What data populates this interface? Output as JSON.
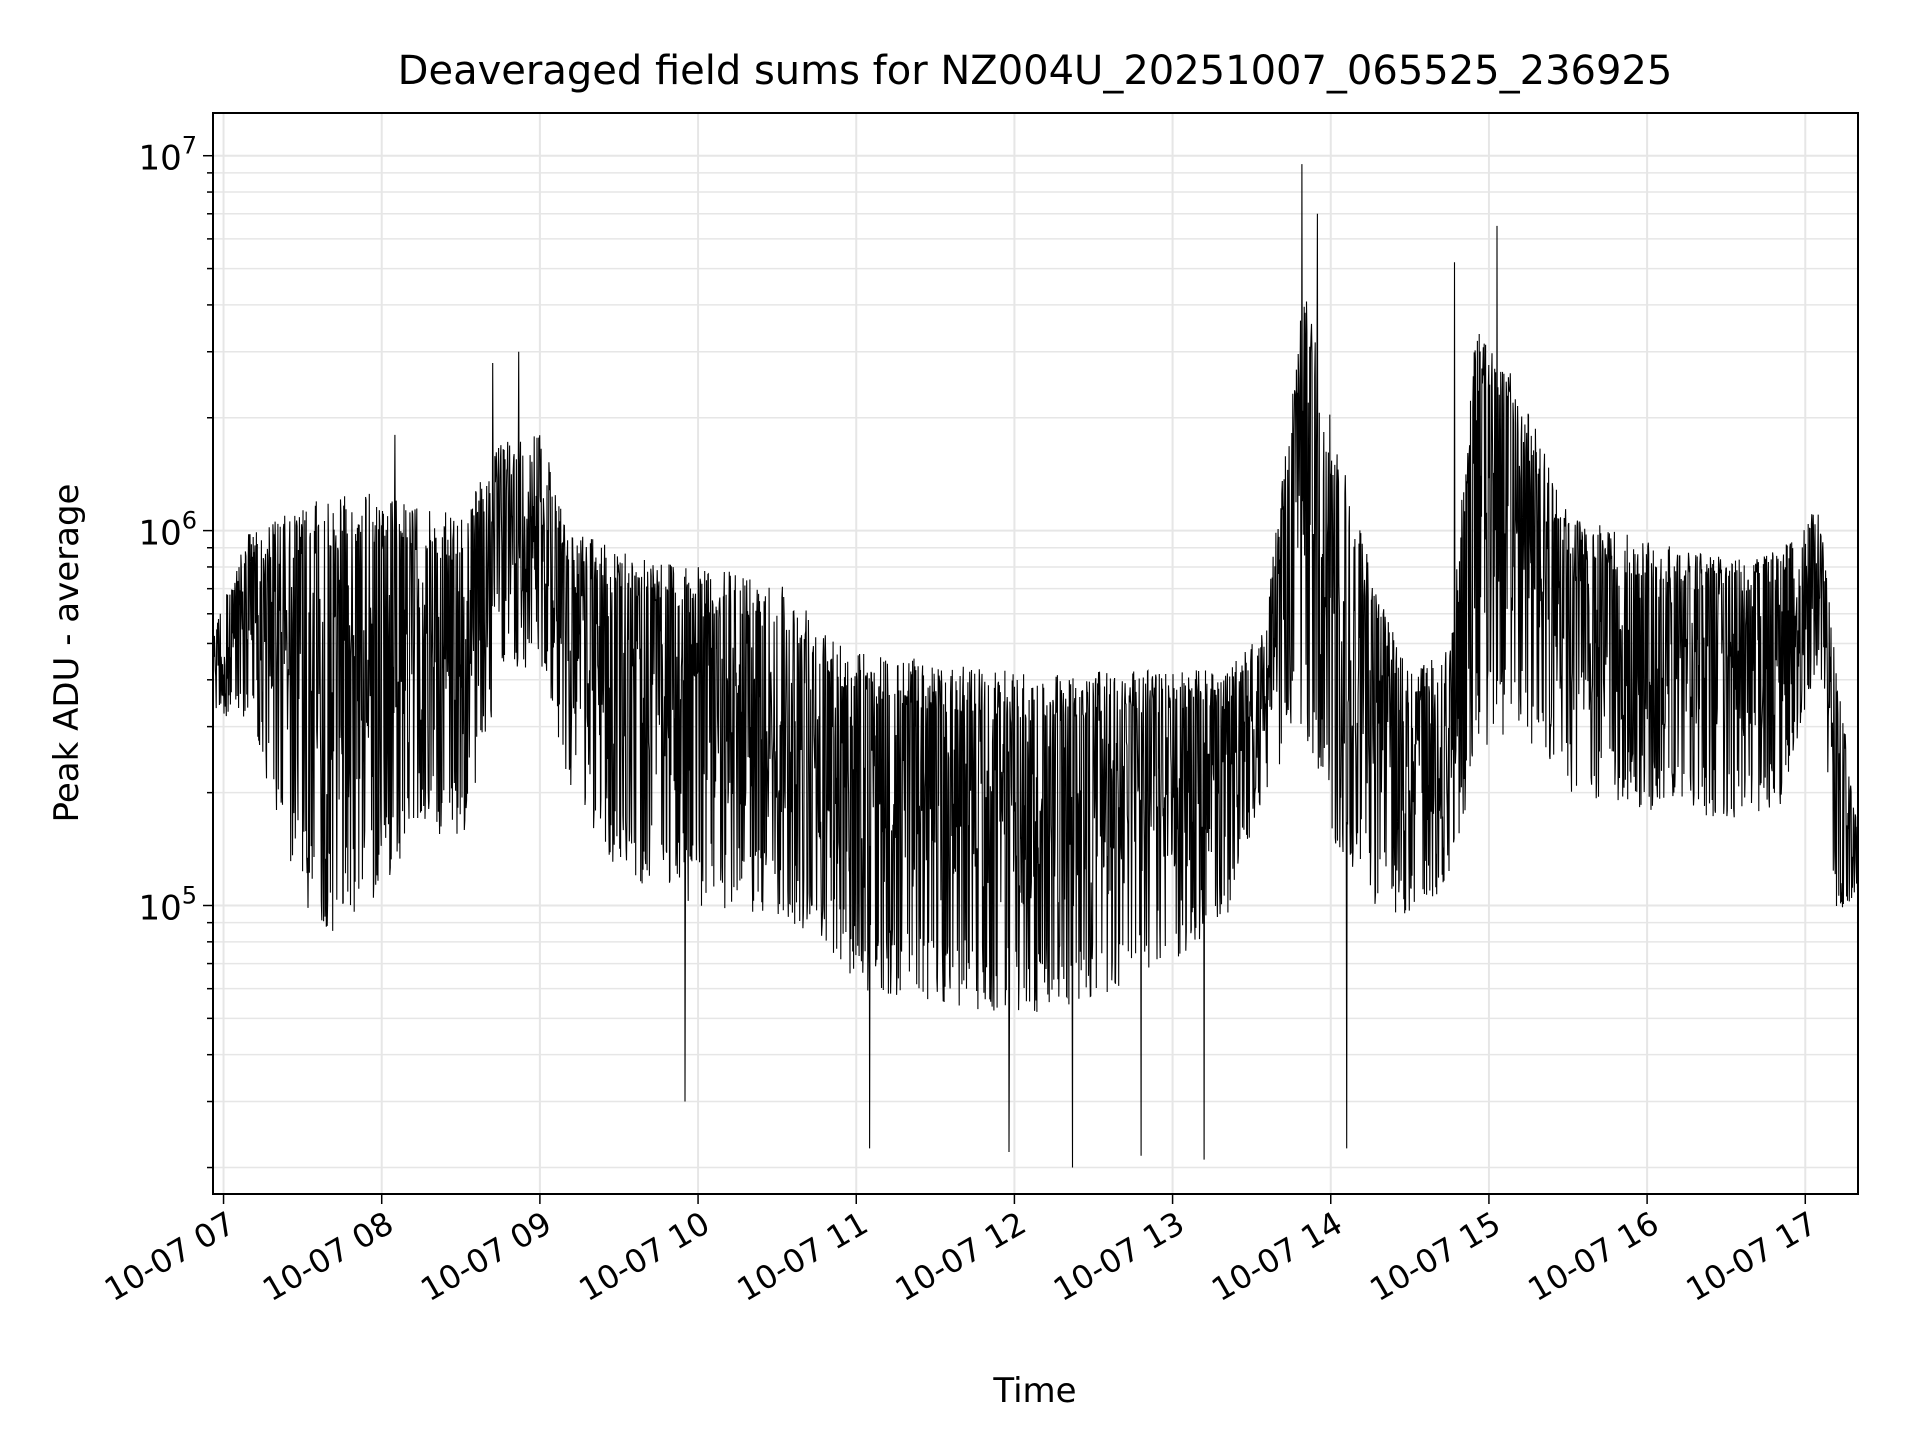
{
  "chart_data": {
    "type": "line",
    "title": "Deaveraged field sums for NZ004U_20251007_065525_236925",
    "xlabel": "Time",
    "ylabel": "Peak ADU - average",
    "yscale": "log",
    "xlim": [
      "2025-10-07T06:56",
      "2025-10-07T17:20"
    ],
    "ylim": [
      17000,
      13000000
    ],
    "grid": true,
    "line_color": "#000000",
    "grid_color": "#e6e6e6",
    "x_ticks": [
      "10-07 07",
      "10-07 08",
      "10-07 09",
      "10-07 10",
      "10-07 11",
      "10-07 12",
      "10-07 13",
      "10-07 14",
      "10-07 15",
      "10-07 16",
      "10-07 17"
    ],
    "y_ticks": [
      {
        "value": 100000,
        "base": "10",
        "exp": "5"
      },
      {
        "value": 1000000,
        "base": "10",
        "exp": "6"
      },
      {
        "value": 10000000,
        "base": "10",
        "exp": "7"
      }
    ],
    "series_envelope": {
      "x": [
        "2025-10-07T06:56",
        "2025-10-07T07:10",
        "2025-10-07T07:30",
        "2025-10-07T07:45",
        "2025-10-07T08:00",
        "2025-10-07T08:15",
        "2025-10-07T08:30",
        "2025-10-07T08:45",
        "2025-10-07T09:00",
        "2025-10-07T09:10",
        "2025-10-07T09:30",
        "2025-10-07T10:00",
        "2025-10-07T10:30",
        "2025-10-07T10:45",
        "2025-10-07T11:00",
        "2025-10-07T11:30",
        "2025-10-07T12:00",
        "2025-10-07T12:30",
        "2025-10-07T13:00",
        "2025-10-07T13:20",
        "2025-10-07T13:35",
        "2025-10-07T13:50",
        "2025-10-07T14:00",
        "2025-10-07T14:15",
        "2025-10-07T14:30",
        "2025-10-07T14:45",
        "2025-10-07T14:55",
        "2025-10-07T15:10",
        "2025-10-07T15:30",
        "2025-10-07T16:00",
        "2025-10-07T16:30",
        "2025-10-07T16:50",
        "2025-10-07T17:05",
        "2025-10-07T17:12",
        "2025-10-07T17:20"
      ],
      "upper": [
        550000,
        1000000,
        1150000,
        1300000,
        1250000,
        1150000,
        1100000,
        1700000,
        1900000,
        1000000,
        900000,
        800000,
        750000,
        600000,
        480000,
        450000,
        420000,
        420000,
        430000,
        420000,
        550000,
        4500000,
        2000000,
        800000,
        420000,
        480000,
        3500000,
        2600000,
        1100000,
        950000,
        850000,
        900000,
        1200000,
        420000,
        160000
      ],
      "lower": [
        330000,
        300000,
        100000,
        80000,
        110000,
        160000,
        140000,
        400000,
        450000,
        220000,
        120000,
        100000,
        90000,
        80000,
        60000,
        55000,
        50000,
        55000,
        70000,
        90000,
        200000,
        300000,
        150000,
        100000,
        90000,
        110000,
        250000,
        300000,
        200000,
        180000,
        170000,
        180000,
        450000,
        90000,
        110000
      ],
      "peaks": [
        {
          "x": "2025-10-07T13:49",
          "y": 9500000
        },
        {
          "x": "2025-10-07T13:55",
          "y": 7000000
        },
        {
          "x": "2025-10-07T15:03",
          "y": 6500000
        },
        {
          "x": "2025-10-07T14:47",
          "y": 5200000
        },
        {
          "x": "2025-10-07T08:52",
          "y": 3000000
        },
        {
          "x": "2025-10-07T08:42",
          "y": 2800000
        },
        {
          "x": "2025-10-07T08:05",
          "y": 1800000
        }
      ],
      "dips": [
        {
          "x": "2025-10-07T12:22",
          "y": 20000
        },
        {
          "x": "2025-10-07T13:12",
          "y": 21000
        },
        {
          "x": "2025-10-07T12:48",
          "y": 21500
        },
        {
          "x": "2025-10-07T11:58",
          "y": 22000
        },
        {
          "x": "2025-10-07T14:06",
          "y": 22500
        },
        {
          "x": "2025-10-07T11:05",
          "y": 22500
        },
        {
          "x": "2025-10-07T09:55",
          "y": 30000
        }
      ]
    }
  }
}
